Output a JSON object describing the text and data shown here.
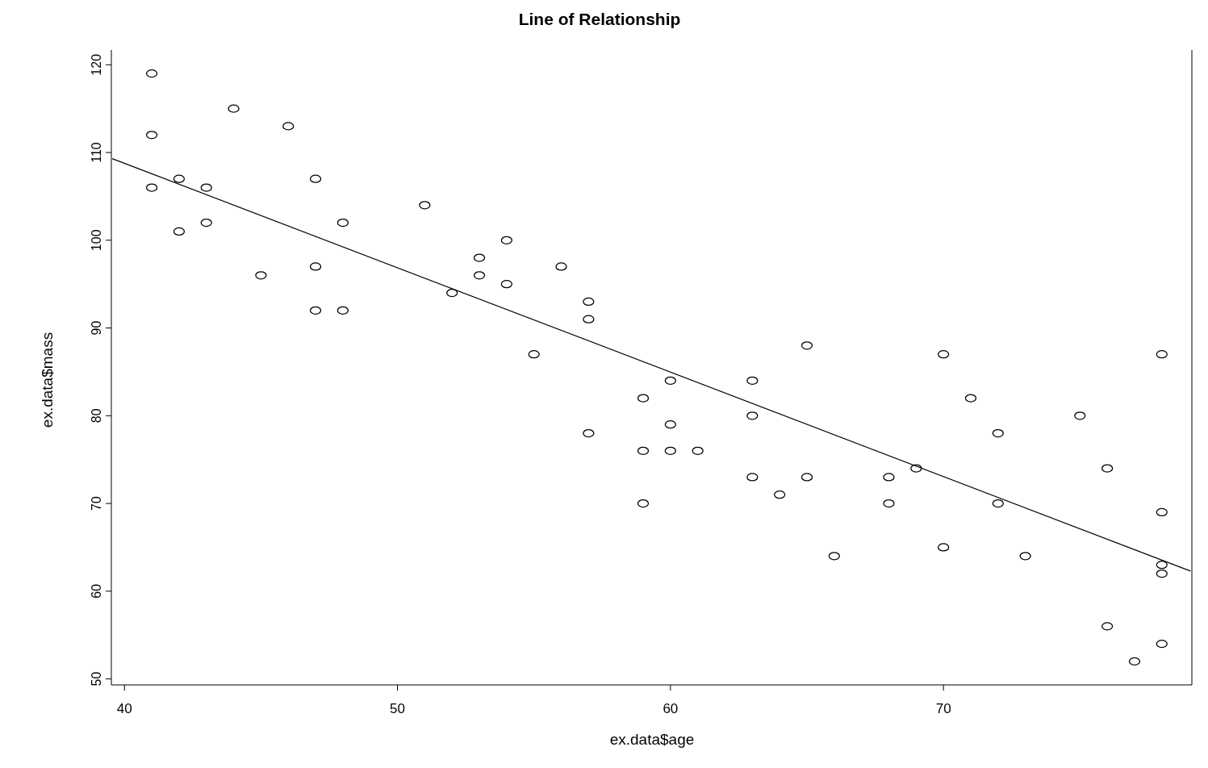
{
  "chart_data": {
    "type": "scatter",
    "title": "Line of Relationship",
    "xlabel": "ex.data$age",
    "ylabel": "ex.data$mass",
    "xlim": [
      39.52,
      79.1
    ],
    "ylim": [
      49.32,
      121.68
    ],
    "xticks": [
      40,
      50,
      60,
      70
    ],
    "yticks": [
      50,
      60,
      70,
      80,
      90,
      100,
      110,
      120
    ],
    "marker": "circle",
    "series": [
      {
        "color": "#000000",
        "x": [
          41,
          41,
          41,
          42,
          42,
          43,
          43,
          44,
          45,
          46,
          47,
          47,
          47,
          48,
          48,
          51,
          52,
          53,
          53,
          54,
          54,
          55,
          56,
          57,
          57,
          57,
          59,
          59,
          59,
          60,
          60,
          60,
          61,
          63,
          63,
          63,
          64,
          65,
          65,
          66,
          68,
          68,
          69,
          70,
          70,
          71,
          72,
          72,
          73,
          75,
          76,
          76,
          77,
          78,
          78,
          78,
          78,
          78
        ],
        "values": [
          119,
          112,
          106,
          107,
          101,
          106,
          102,
          115,
          96,
          113,
          107,
          97,
          92,
          102,
          92,
          104,
          94,
          98,
          96,
          100,
          95,
          87,
          97,
          93,
          91,
          78,
          82,
          76,
          70,
          84,
          79,
          76,
          76,
          84,
          80,
          73,
          71,
          88,
          73,
          64,
          73,
          70,
          74,
          87,
          65,
          82,
          78,
          70,
          64,
          80,
          74,
          56,
          52,
          87,
          69,
          63,
          62,
          54
        ]
      },
      {
        "type": "line",
        "color": "#000000",
        "marker": "none",
        "x": [
          39.55,
          79.05
        ],
        "values": [
          109.3,
          62.3
        ]
      }
    ]
  }
}
